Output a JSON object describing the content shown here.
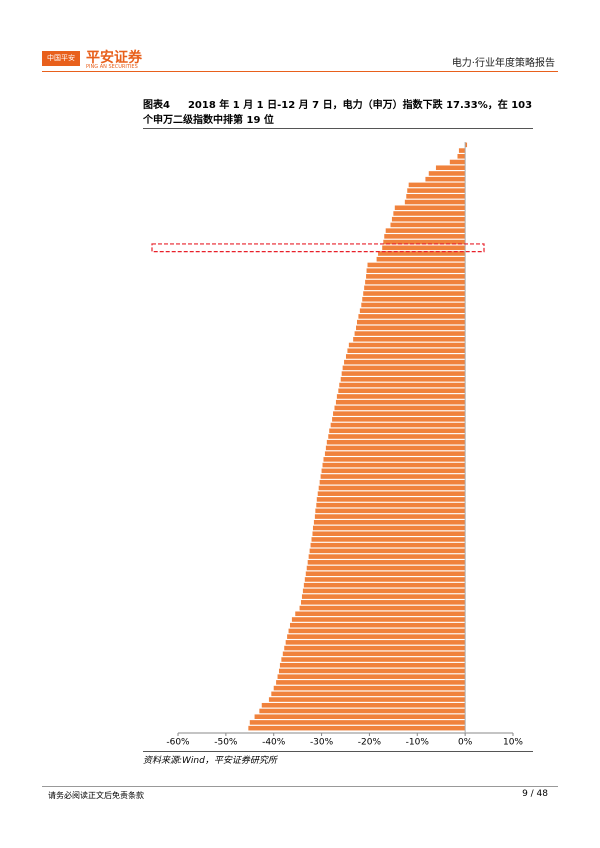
{
  "header": {
    "logo_badge": "中国平安",
    "logo_name": "平安证券",
    "logo_sub": "PING AN SECURITIES",
    "report": "电力·行业年度策略报告"
  },
  "figure_label": "图表4",
  "chart_data": {
    "type": "barh",
    "title": "2018 年 1 月 1 日-12 月 7 日，电力（申万）指数下跌 17.33%，在 103 个申万二级指数中排第 19 位",
    "categories": [
      null,
      null,
      null,
      null,
      null,
      null,
      null,
      null,
      null,
      null,
      null,
      null,
      null,
      null,
      null,
      null,
      null,
      null,
      null,
      null,
      null,
      null,
      null,
      null,
      null,
      null,
      null,
      null,
      null,
      null,
      null,
      null,
      null,
      null,
      null,
      null,
      null,
      null,
      null,
      null,
      null,
      null,
      null,
      null,
      null,
      null,
      null,
      null,
      null,
      null,
      null,
      null,
      null,
      null,
      null,
      null,
      null,
      null,
      null,
      null,
      null,
      null,
      null,
      null,
      null,
      null,
      null,
      null,
      null,
      null,
      null,
      null,
      null,
      null,
      null,
      null,
      null,
      null,
      null,
      null,
      null,
      null,
      null,
      null,
      null,
      null,
      null,
      null,
      null,
      null,
      null,
      null,
      null,
      null,
      null,
      null,
      null,
      null,
      null,
      null,
      null,
      null,
      null
    ],
    "values": [
      0.4,
      -1.3,
      -1.6,
      -3.2,
      -6.1,
      -7.6,
      -8.3,
      -11.8,
      -12.1,
      -12.3,
      -12.6,
      -14.7,
      -15.0,
      -15.3,
      -15.6,
      -16.6,
      -16.9,
      -17.1,
      -17.33,
      -18.2,
      -18.5,
      -20.4,
      -20.6,
      -20.7,
      -20.9,
      -21.1,
      -21.3,
      -21.5,
      -21.7,
      -22.0,
      -22.3,
      -22.6,
      -22.8,
      -23.1,
      -23.4,
      -24.3,
      -24.6,
      -24.9,
      -25.3,
      -25.6,
      -25.8,
      -26.0,
      -26.3,
      -26.5,
      -26.8,
      -27.0,
      -27.3,
      -27.6,
      -27.8,
      -28.1,
      -28.4,
      -28.6,
      -28.9,
      -29.1,
      -29.3,
      -29.6,
      -29.8,
      -30.0,
      -30.2,
      -30.4,
      -30.6,
      -30.8,
      -31.0,
      -31.1,
      -31.3,
      -31.4,
      -31.6,
      -31.8,
      -31.9,
      -32.1,
      -32.3,
      -32.5,
      -32.7,
      -32.9,
      -33.1,
      -33.3,
      -33.5,
      -33.7,
      -33.9,
      -34.1,
      -34.3,
      -34.6,
      -35.5,
      -36.2,
      -36.6,
      -36.9,
      -37.2,
      -37.5,
      -37.8,
      -38.1,
      -38.4,
      -38.7,
      -38.9,
      -39.2,
      -39.5,
      -40.0,
      -40.5,
      -41.0,
      -42.5,
      -43.0,
      -44.0,
      -45.0,
      -45.3
    ],
    "color": "#f0823c",
    "highlight_color": "#e8202a",
    "xlim": [
      -60,
      10
    ],
    "xticks": [
      {
        "value": -60,
        "label": "-60%"
      },
      {
        "value": -50,
        "label": "-50%"
      },
      {
        "value": -40,
        "label": "-40%"
      },
      {
        "value": -30,
        "label": "-30%"
      },
      {
        "value": -20,
        "label": "-20%"
      },
      {
        "value": -10,
        "label": "-10%"
      },
      {
        "value": 0,
        "label": "0%"
      },
      {
        "value": 10,
        "label": "10%"
      }
    ]
  },
  "source": "资料来源:Wind，平安证券研究所",
  "footer": {
    "disclaimer": "请务必阅读正文后免责条款",
    "page": "9 / 48"
  }
}
